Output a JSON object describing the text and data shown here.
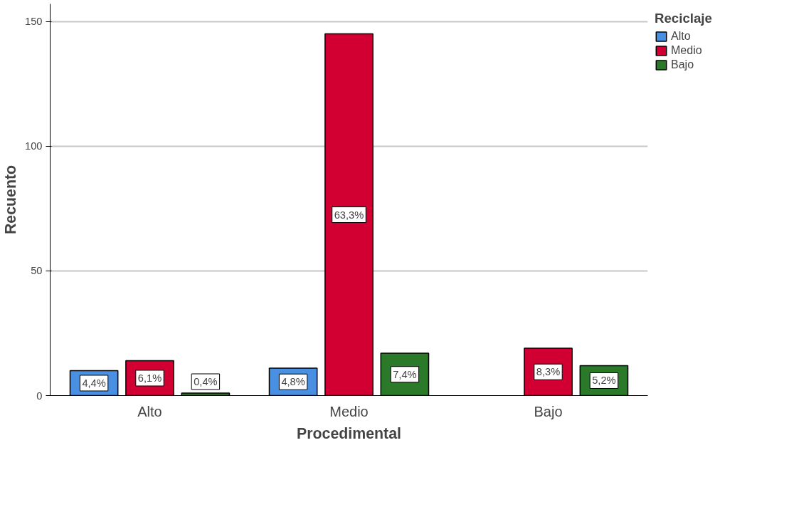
{
  "chart_data": {
    "type": "bar",
    "xlabel": "Procedimental",
    "ylabel": "Recuento",
    "legend_title": "Reciclaje",
    "categories": [
      "Alto",
      "Medio",
      "Bajo"
    ],
    "series": [
      {
        "name": "Alto",
        "color": "#4a90e2",
        "values": [
          10,
          11,
          null
        ]
      },
      {
        "name": "Medio",
        "color": "#d20032",
        "values": [
          14,
          145,
          19
        ]
      },
      {
        "name": "Bajo",
        "color": "#2a7a2a",
        "values": [
          1,
          17,
          12
        ]
      }
    ],
    "annotations": [
      "4,4%",
      "4,8%",
      "6,1%",
      "63,3%",
      "8,3%",
      "0,4%",
      "7,4%",
      "5,2%"
    ],
    "ylim": [
      0,
      157
    ],
    "yticks": [
      0,
      50,
      100,
      150
    ],
    "grid": "y",
    "legend": "top right"
  }
}
